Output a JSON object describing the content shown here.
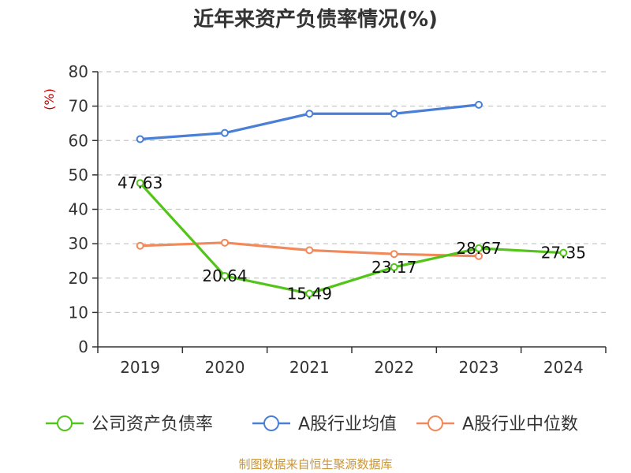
{
  "chart_data": {
    "type": "line",
    "title": "近年来资产负债率情况(%)",
    "ylabel": "(%)",
    "categories": [
      "2019",
      "2020",
      "2021",
      "2022",
      "2023",
      "2024"
    ],
    "ylim": [
      0,
      80
    ],
    "yticks": [
      0,
      10,
      20,
      30,
      40,
      50,
      60,
      70,
      80
    ],
    "grid": true,
    "legend_position": "bottom",
    "series": [
      {
        "name": "公司资产负债率",
        "color": "#52c41a",
        "values": [
          47.63,
          20.64,
          15.49,
          23.17,
          28.67,
          27.35
        ],
        "labels": [
          "47.63",
          "20.64",
          "15.49",
          "23.17",
          "28.67",
          "27.35"
        ]
      },
      {
        "name": "A股行业均值",
        "color": "#4a7fd6",
        "values": [
          60.4,
          62.2,
          67.8,
          67.8,
          70.4,
          null
        ]
      },
      {
        "name": "A股行业中位数",
        "color": "#f2895a",
        "values": [
          29.4,
          30.3,
          28.1,
          27.0,
          26.4,
          null
        ]
      }
    ]
  },
  "source": "制图数据来自恒生聚源数据库",
  "colors": {
    "axis": "#333333",
    "grid": "#c8c8c8",
    "ylabel": "#cc0000",
    "source": "#c8963c"
  }
}
